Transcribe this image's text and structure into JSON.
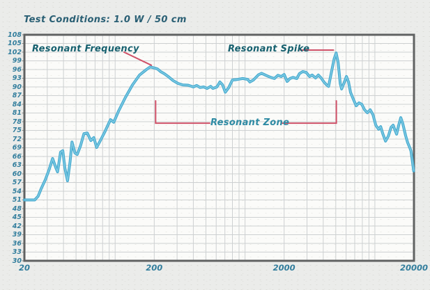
{
  "header": {
    "title": "Test Conditions: 1.0 W / 50 cm"
  },
  "chart_data": {
    "type": "line",
    "title": "Test Conditions: 1.0 W / 50 cm",
    "xscale": "log",
    "xlim": [
      20,
      20000
    ],
    "ylim": [
      30,
      108
    ],
    "x_ticks": [
      20,
      200,
      2000,
      20000
    ],
    "y_ticks": [
      108,
      105,
      102,
      99,
      96,
      93,
      90,
      87,
      84,
      81,
      78,
      75,
      72,
      69,
      66,
      63,
      60,
      57,
      54,
      51,
      48,
      45,
      42,
      39,
      36,
      33,
      30
    ],
    "grid": "on",
    "points": [
      [
        20,
        51
      ],
      [
        24,
        51
      ],
      [
        25.5,
        52.3
      ],
      [
        27,
        55
      ],
      [
        29,
        58
      ],
      [
        31,
        61.5
      ],
      [
        33,
        65.3
      ],
      [
        35,
        62
      ],
      [
        36,
        60.7
      ],
      [
        38,
        67.5
      ],
      [
        39.5,
        68
      ],
      [
        41,
        62
      ],
      [
        43,
        57.6
      ],
      [
        45,
        64.3
      ],
      [
        46.5,
        71
      ],
      [
        49,
        67.2
      ],
      [
        51,
        66.7
      ],
      [
        54,
        69.6
      ],
      [
        57.5,
        73.9
      ],
      [
        61,
        74.1
      ],
      [
        65,
        71.5
      ],
      [
        68.5,
        72.5
      ],
      [
        72,
        69.1
      ],
      [
        78,
        72
      ],
      [
        83,
        74.4
      ],
      [
        92,
        78.7
      ],
      [
        97.5,
        77.8
      ],
      [
        106,
        81.6
      ],
      [
        120,
        86.4
      ],
      [
        136,
        90.7
      ],
      [
        154,
        94.1
      ],
      [
        174,
        96
      ],
      [
        186,
        96.9
      ],
      [
        202,
        96.5
      ],
      [
        212,
        96.2
      ],
      [
        225,
        95.2
      ],
      [
        238,
        94.6
      ],
      [
        259,
        93.4
      ],
      [
        279,
        92.2
      ],
      [
        305,
        91.2
      ],
      [
        332,
        90.7
      ],
      [
        365,
        90.6
      ],
      [
        400,
        90
      ],
      [
        425,
        90.5
      ],
      [
        451,
        89.8
      ],
      [
        480,
        90
      ],
      [
        511,
        89.5
      ],
      [
        544,
        90.2
      ],
      [
        566,
        89.5
      ],
      [
        608,
        90
      ],
      [
        640,
        91.7
      ],
      [
        672,
        90.7
      ],
      [
        705,
        88.2
      ],
      [
        750,
        89.8
      ],
      [
        800,
        92.4
      ],
      [
        874,
        92.6
      ],
      [
        960,
        92.9
      ],
      [
        1050,
        92.6
      ],
      [
        1090,
        91.7
      ],
      [
        1160,
        92.4
      ],
      [
        1270,
        94.2
      ],
      [
        1340,
        94.7
      ],
      [
        1450,
        94
      ],
      [
        1580,
        93.3
      ],
      [
        1683,
        92.9
      ],
      [
        1790,
        94
      ],
      [
        1900,
        93.6
      ],
      [
        2000,
        94.3
      ],
      [
        2110,
        91.9
      ],
      [
        2220,
        92.9
      ],
      [
        2345,
        93.3
      ],
      [
        2505,
        92.9
      ],
      [
        2625,
        94.6
      ],
      [
        2785,
        95.3
      ],
      [
        2960,
        95
      ],
      [
        3140,
        93.6
      ],
      [
        3290,
        94.1
      ],
      [
        3495,
        93.1
      ],
      [
        3670,
        94.1
      ],
      [
        3855,
        93.1
      ],
      [
        4050,
        91.7
      ],
      [
        4250,
        90.7
      ],
      [
        4400,
        90.2
      ],
      [
        4615,
        94.8
      ],
      [
        4850,
        99.6
      ],
      [
        5030,
        101.7
      ],
      [
        5215,
        98.4
      ],
      [
        5410,
        91.2
      ],
      [
        5545,
        89.3
      ],
      [
        5825,
        91.7
      ],
      [
        6040,
        93.6
      ],
      [
        6270,
        91.7
      ],
      [
        6500,
        88.1
      ],
      [
        6830,
        85.7
      ],
      [
        7180,
        83.5
      ],
      [
        7545,
        84.5
      ],
      [
        7930,
        84
      ],
      [
        8330,
        82.1
      ],
      [
        8755,
        81.1
      ],
      [
        9200,
        82.1
      ],
      [
        9670,
        80.4
      ],
      [
        10160,
        76.8
      ],
      [
        10680,
        75.4
      ],
      [
        11080,
        76.3
      ],
      [
        11500,
        73.9
      ],
      [
        12080,
        71.3
      ],
      [
        12690,
        73
      ],
      [
        13330,
        76.1
      ],
      [
        13830,
        76.8
      ],
      [
        14350,
        74.9
      ],
      [
        14710,
        73.7
      ],
      [
        15260,
        76.8
      ],
      [
        15830,
        79.4
      ],
      [
        16420,
        77.3
      ],
      [
        17240,
        73.2
      ],
      [
        17880,
        70.8
      ],
      [
        18540,
        69.1
      ],
      [
        18960,
        67.9
      ],
      [
        19400,
        64.8
      ],
      [
        19900,
        61
      ]
    ],
    "annotations": {
      "resonant_frequency": {
        "label": "Resonant Frequency",
        "pointer_to_hz": 190,
        "pointer_to_db": 97
      },
      "resonant_spike": {
        "label": "Resonant Spike",
        "pointer_to_hz": 4800,
        "pointer_to_db": 102
      },
      "resonant_zone": {
        "label": "Resonant Zone",
        "from_hz": 205,
        "to_hz": 5050,
        "level_db": 77.5,
        "tick_top_db": 85.2
      }
    },
    "colors": {
      "curve": "#47aacf",
      "curve_highlight": "#83cde4",
      "annotation_line": "#cf5168",
      "annotation_text": "#17616f",
      "zone_text": "#2f8ba4",
      "tick_text": "#337e9d",
      "title_text": "#2a5f74",
      "grid_line": "#cdd0d1",
      "border": "#606262",
      "plot_background": "#fbfbf9",
      "page_background": "#ebecea"
    }
  }
}
